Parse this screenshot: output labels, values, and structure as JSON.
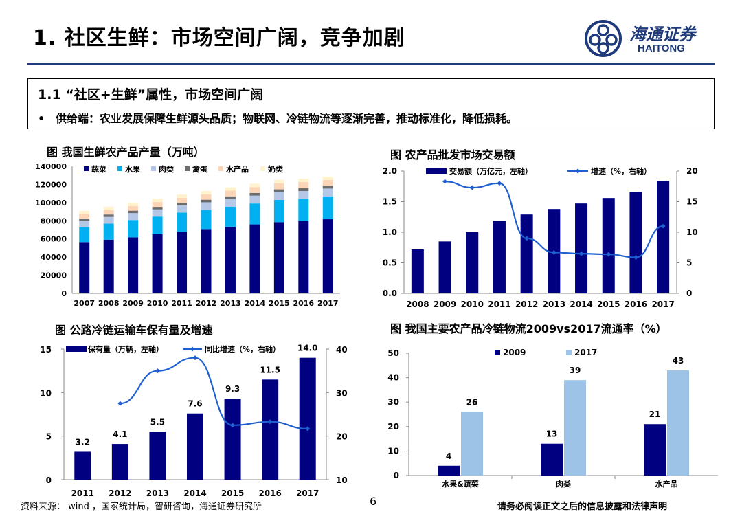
{
  "header": {
    "title": "1. 社区生鲜：市场空间广阔，竞争加剧"
  },
  "logo": {
    "cn": "海通证券",
    "en": "HAITONG"
  },
  "box": {
    "heading": "1.1 “社区+生鲜”属性，市场空间广阔",
    "bullet": "•",
    "text": "供给端：农业发展保障生鲜源头品质；物联网、冷链物流等逐渐完善，推动标准化，降低损耗。"
  },
  "footer": {
    "source": "资料来源： wind ，国家统计局，智研咨询，海通证券研究所",
    "page": "6",
    "disclaimer": "请务必阅读正文之后的信息披露和法律声明"
  },
  "colors": {
    "navy": "#000080",
    "cyan": "#00B0F0",
    "lightblue": "#B4C7E7",
    "gray": "#6D6D6D",
    "peach": "#FBD5B5",
    "cream": "#FFF2CC",
    "line": "#1F5FD0",
    "sky": "#9DC3E6",
    "brand": "#1f3a7a"
  },
  "chart_data": [
    {
      "type": "bar",
      "stacked": true,
      "title": "图  我国生鲜农产品产量（万吨）",
      "categories": [
        "2007",
        "2008",
        "2009",
        "2010",
        "2011",
        "2012",
        "2013",
        "2014",
        "2015",
        "2016",
        "2017"
      ],
      "series": [
        {
          "name": "蔬菜",
          "values": [
            56500,
            59200,
            61800,
            65100,
            67900,
            70900,
            73500,
            76000,
            78500,
            79800,
            81700
          ]
        },
        {
          "name": "水果",
          "values": [
            16500,
            17700,
            19000,
            19500,
            21000,
            21000,
            22000,
            23000,
            24500,
            24400,
            25200
          ]
        },
        {
          "name": "肉类",
          "values": [
            7000,
            7300,
            7600,
            7900,
            8000,
            8400,
            8500,
            8700,
            8600,
            8500,
            8600
          ]
        },
        {
          "name": "禽蛋",
          "values": [
            2500,
            2700,
            2700,
            2800,
            2800,
            2900,
            2900,
            2900,
            3000,
            3100,
            3100
          ]
        },
        {
          "name": "水产品",
          "values": [
            4800,
            4900,
            5100,
            5400,
            5600,
            5900,
            6200,
            6500,
            6700,
            6900,
            6400
          ]
        },
        {
          "name": "奶类",
          "values": [
            3600,
            3800,
            3600,
            3600,
            3700,
            3700,
            3600,
            3700,
            3800,
            3700,
            3700
          ]
        }
      ],
      "ylim": [
        0,
        140000
      ],
      "yticks": [
        "0",
        "20000",
        "40000",
        "60000",
        "80000",
        "100000",
        "120000",
        "140000"
      ],
      "legend": "top"
    },
    {
      "type": "bar",
      "title": "图  农产品批发市场交易额",
      "categories": [
        "2008",
        "2009",
        "2010",
        "2011",
        "2012",
        "2013",
        "2014",
        "2015",
        "2016",
        "2017"
      ],
      "series": [
        {
          "name": "交易额（万亿元，左轴）",
          "type": "bar",
          "values": [
            0.72,
            0.85,
            1.0,
            1.19,
            1.29,
            1.38,
            1.47,
            1.56,
            1.66,
            1.84
          ]
        },
        {
          "name": "增速（%，右轴）",
          "type": "line",
          "values": [
            null,
            18.3,
            17.3,
            18.0,
            9.0,
            6.7,
            6.5,
            6.4,
            5.9,
            11.0
          ]
        }
      ],
      "ylim": [
        0,
        2.0
      ],
      "yticks": [
        "0.0",
        "0.5",
        "1.0",
        "1.5",
        "2.0"
      ],
      "y2lim": [
        0,
        20
      ],
      "y2ticks": [
        "0",
        "5",
        "10",
        "15",
        "20"
      ],
      "legend": "top"
    },
    {
      "type": "bar",
      "title": "图  公路冷链运输车保有量及增速",
      "categories": [
        "2011",
        "2012",
        "2013",
        "2014",
        "2015",
        "2016",
        "2017"
      ],
      "series": [
        {
          "name": "保有量（万辆，左轴）",
          "type": "bar",
          "values": [
            3.2,
            4.1,
            5.5,
            7.6,
            9.3,
            11.5,
            14.0
          ],
          "labels": [
            "3.2",
            "4.1",
            "5.5",
            "7.6",
            "9.3",
            "11.5",
            "14.0"
          ]
        },
        {
          "name": "同比增速（%，右轴）",
          "type": "line",
          "values": [
            null,
            27.5,
            35.0,
            38.0,
            22.5,
            23.3,
            21.7
          ]
        }
      ],
      "ylim": [
        0,
        15
      ],
      "yticks": [
        "0",
        "5",
        "10",
        "15"
      ],
      "y2lim": [
        10,
        40
      ],
      "y2ticks": [
        "10",
        "20",
        "30",
        "40"
      ],
      "legend": "top"
    },
    {
      "type": "bar",
      "title": "图  我国主要农产品冷链物流2009vs2017流通率（%）",
      "categories": [
        "水果&蔬菜",
        "肉类",
        "水产品"
      ],
      "series": [
        {
          "name": "2009",
          "values": [
            4,
            13,
            21
          ]
        },
        {
          "name": "2017",
          "values": [
            26,
            39,
            43
          ]
        }
      ],
      "ylim": [
        0,
        50
      ],
      "yticks": [
        "0",
        "10",
        "20",
        "30",
        "40",
        "50"
      ],
      "legend": "top"
    }
  ]
}
